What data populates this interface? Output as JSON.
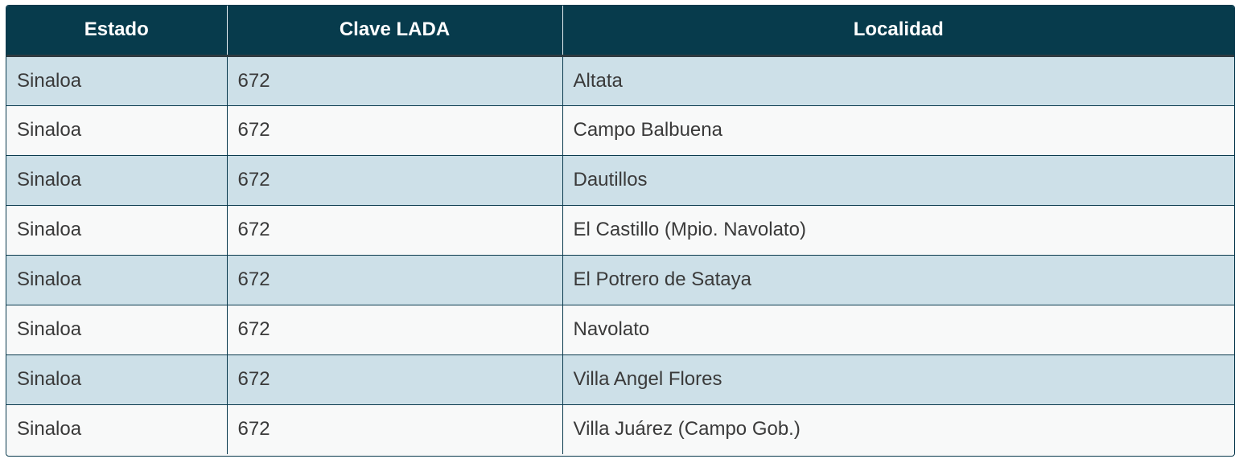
{
  "table": {
    "headers": [
      "Estado",
      "Clave LADA",
      "Localidad"
    ],
    "rows": [
      [
        "Sinaloa",
        "672",
        "Altata"
      ],
      [
        "Sinaloa",
        "672",
        "Campo Balbuena"
      ],
      [
        "Sinaloa",
        "672",
        "Dautillos"
      ],
      [
        "Sinaloa",
        "672",
        "El Castillo (Mpio. Navolato)"
      ],
      [
        "Sinaloa",
        "672",
        "El Potrero de Sataya"
      ],
      [
        "Sinaloa",
        "672",
        "Navolato"
      ],
      [
        "Sinaloa",
        "672",
        "Villa Angel Flores"
      ],
      [
        "Sinaloa",
        "672",
        "Villa Juárez (Campo Gob.)"
      ]
    ]
  },
  "colors": {
    "header_bg": "#073b4c",
    "row_alt_bg": "#cde0e8",
    "row_bg": "#f8f9f9"
  }
}
